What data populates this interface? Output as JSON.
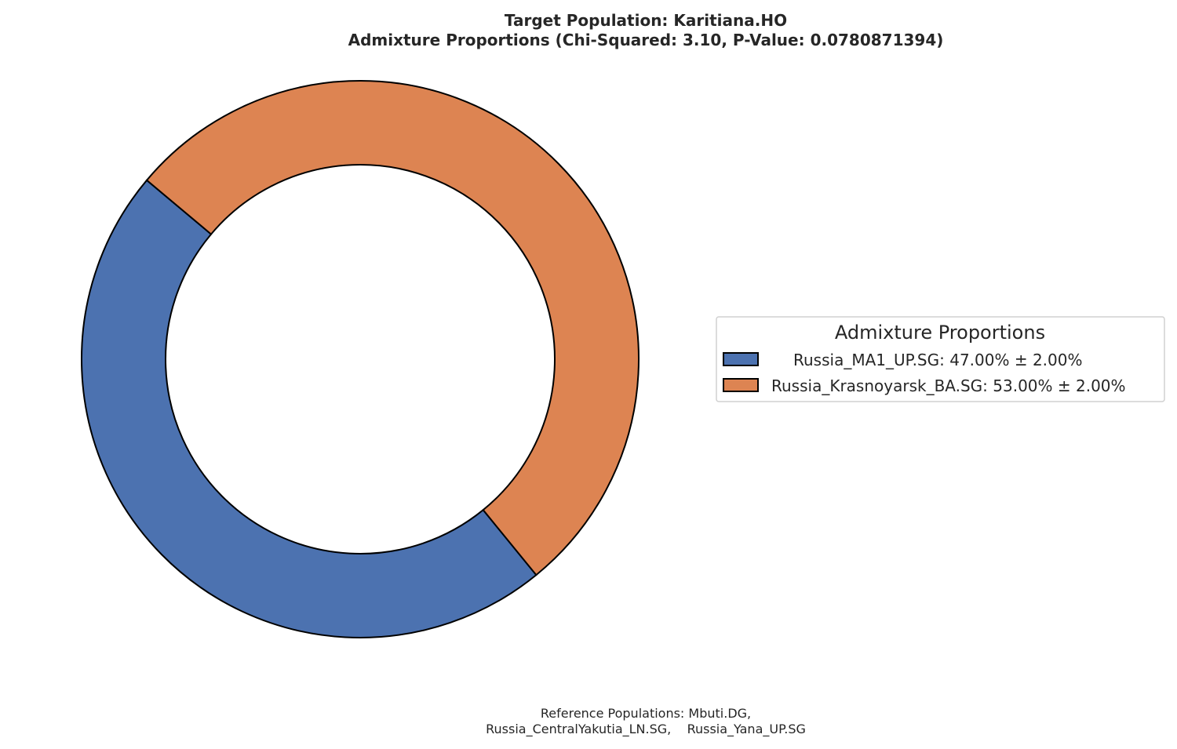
{
  "chart_data": {
    "type": "pie",
    "donut": true,
    "title": "Target Population: Karitiana.HO",
    "subtitle": "Admixture Proportions (Chi-Squared: 3.10, P-Value: 0.0780871394)",
    "slices": [
      {
        "name": "Russia_MA1_UP.SG",
        "value": 47.0,
        "error": 2.0,
        "color": "#4c72b0",
        "legend_label": "Russia_MA1_UP.SG: 47.00% ± 2.00%"
      },
      {
        "name": "Russia_Krasnoyarsk_BA.SG",
        "value": 53.0,
        "error": 2.0,
        "color": "#dd8452",
        "legend_label": "Russia_Krasnoyarsk_BA.SG: 53.00% ± 2.00%"
      }
    ],
    "legend": {
      "title": "Admixture Proportions",
      "placement": "right"
    },
    "footer": {
      "line1": "Reference Populations: Mbuti.DG,",
      "line2": "Russia_CentralYakutia_LN.SG,    Russia_Yana_UP.SG"
    }
  }
}
